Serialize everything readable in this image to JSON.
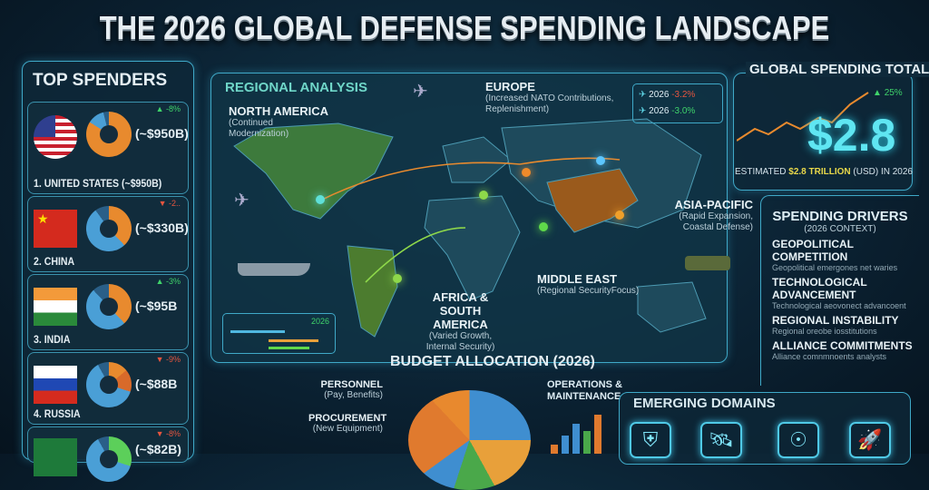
{
  "title": "THE 2026 GLOBAL DEFENSE SPENDING LANDSCAPE",
  "top_spenders": {
    "heading": "TOP SPENDERS",
    "items": [
      {
        "rank_name": "1. UNITED STATES (~$950B)",
        "amount": "(~$950B)",
        "change": "-8%",
        "trend": "up",
        "flag": "us"
      },
      {
        "rank_name": "2. CHINA",
        "amount": "(~$330B)",
        "change": "-2..",
        "trend": "down",
        "flag": "cn"
      },
      {
        "rank_name": "3. INDIA",
        "amount": "(~$95B",
        "change": "-3%",
        "trend": "up",
        "flag": "in"
      },
      {
        "rank_name": "4. RUSSIA",
        "amount": "(~$88B",
        "change": "-9%",
        "trend": "down",
        "flag": "ru"
      },
      {
        "rank_name": "",
        "amount": "(~$82B)",
        "change": "-8%",
        "trend": "down",
        "flag": "sa"
      }
    ]
  },
  "regional": {
    "heading": "REGIONAL ANALYSIS",
    "north_america": {
      "label": "NORTH AMERICA",
      "note": "(Continued Modernization)"
    },
    "europe": {
      "label": "EUROPE",
      "note": "(Increased NATO Contributions, Replenishment)"
    },
    "asia_pacific": {
      "label": "ASIA-PACIFIC",
      "note": "(Rapid Expansion, Coastal Defense)"
    },
    "middle_east": {
      "label": "MIDDLE EAST",
      "note": "(Regional SecurityFocus)"
    },
    "africa_sa": {
      "label": "AFRICA & SOUTH AMERICA",
      "note": "(Varied Growth, Internal Security)"
    },
    "legend": [
      {
        "year": "2026",
        "change": "-3.2%",
        "trend": "down"
      },
      {
        "year": "2026",
        "change": "-3.0%",
        "trend": "up"
      }
    ],
    "mini_panel_year": "2026"
  },
  "global_total": {
    "heading": "GLOBAL SPENDING TOTAL",
    "big_value": "$2.8",
    "change": "25%",
    "caption_pre": "ESTIMATED",
    "caption_highlight": "$2.8 TRILLION",
    "caption_post": "(USD) IN 2026"
  },
  "drivers": {
    "heading": "SPENDING DRIVERS",
    "subheading": "(2026 CONTEXT)",
    "items": [
      {
        "title": "GEOPOLITICAL COMPETITION",
        "desc": "Geopolitical emergones net waries"
      },
      {
        "title": "TECHNOLOGICAL ADVANCEMENT",
        "desc": "Technological aeovonect advancoent"
      },
      {
        "title": "REGIONAL INSTABILITY",
        "desc": "Regional oreobe iosstitutions"
      },
      {
        "title": "ALLIANCE COMMITMENTS",
        "desc": "Alliance comnmnoents analysts"
      }
    ]
  },
  "budget": {
    "heading": "BUDGET ALLOCATION (2026)",
    "personnel": {
      "label": "PERSONNEL",
      "note": "(Pay, Benefits)"
    },
    "procurement": {
      "label": "PROCUREMENT",
      "note": "(New Equipment)"
    },
    "operations": {
      "label": "OPERATIONS & MAINTENANCE"
    }
  },
  "emerging": {
    "heading": "EMERGING DOMAINS",
    "icons": [
      "cyber-shield",
      "satellite",
      "ai-brain",
      "rocket"
    ]
  },
  "colors": {
    "accent": "#3fa9c8",
    "orange": "#e88a2e",
    "blue": "#4a9fd6",
    "green": "#3fd36a",
    "red": "#e5553f",
    "gold": "#e8d84a"
  }
}
